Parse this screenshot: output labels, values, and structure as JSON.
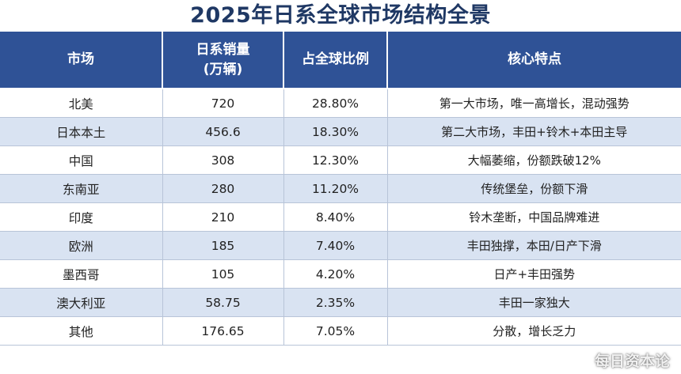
{
  "title": "2025年日系全球市场结构全景",
  "table": {
    "headers": [
      "市场",
      "日系销量\n(万辆)",
      "占全球比例",
      "核心特点"
    ],
    "header_sales_line1": "日系销量",
    "header_sales_line2": "(万辆)",
    "rows": [
      {
        "market": "北美",
        "sales": "720",
        "share": "28.80%",
        "feature": "第一大市场，唯一高增长，混动强势"
      },
      {
        "market": "日本本土",
        "sales": "456.6",
        "share": "18.30%",
        "feature": "第二大市场，丰田+铃木+本田主导"
      },
      {
        "market": "中国",
        "sales": "308",
        "share": "12.30%",
        "feature": "大幅萎缩，份额跌破12%"
      },
      {
        "market": "东南亚",
        "sales": "280",
        "share": "11.20%",
        "feature": "传统堡垒，份额下滑"
      },
      {
        "market": "印度",
        "sales": "210",
        "share": "8.40%",
        "feature": "铃木垄断，中国品牌难进"
      },
      {
        "market": "欧洲",
        "sales": "185",
        "share": "7.40%",
        "feature": "丰田独撑，本田/日产下滑"
      },
      {
        "market": "墨西哥",
        "sales": "105",
        "share": "4.20%",
        "feature": "日产+丰田强势"
      },
      {
        "market": "澳大利亚",
        "sales": "58.75",
        "share": "2.35%",
        "feature": "丰田一家独大"
      },
      {
        "market": "其他",
        "sales": "176.65",
        "share": "7.05%",
        "feature": "分散，增长乏力"
      }
    ]
  },
  "watermark": "每日资本论",
  "colors": {
    "title": "#1f3864",
    "header_bg": "#2f5296",
    "row_alt_bg": "#d9e3f2"
  }
}
